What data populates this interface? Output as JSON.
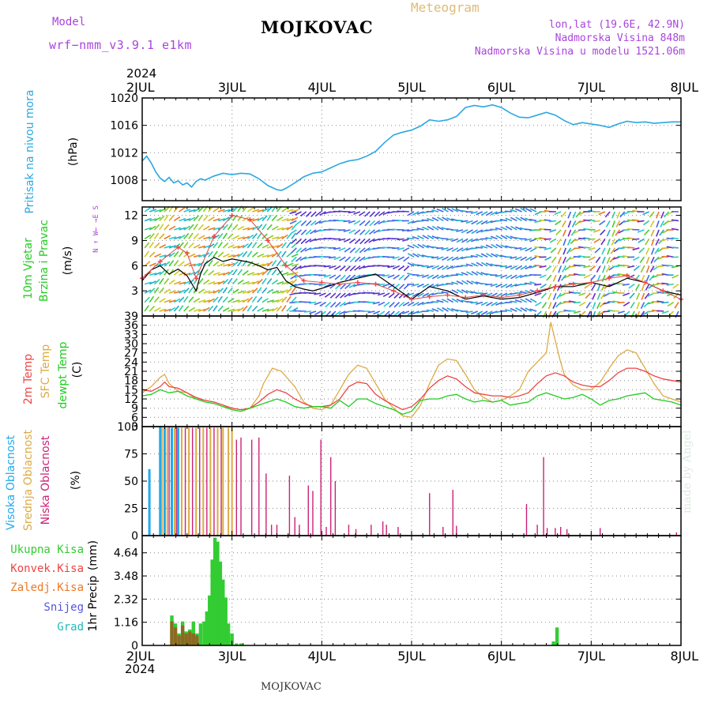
{
  "header": {
    "model_label": "Model",
    "model_value": "wrf−nmm_v3.9.1  e1km",
    "title": "MOJKOVAC",
    "subtitle": "Meteogram",
    "lonlat": "lon,lat (19.6E, 42.9N)",
    "altitude": "Nadmorska Visina 848m",
    "model_altitude": "Nadmorska Visina u modelu 1521.06m",
    "year_top": "2024",
    "year_bottom": "2024",
    "footer": "MOJKOVAC",
    "credit": "made by Angel"
  },
  "colors": {
    "pressure": "#2aa8e0",
    "wind_label": "#22cc22",
    "temp2m": "#ee4444",
    "sfc_temp": "#ddaa44",
    "dewpt": "#22cc22",
    "cloud_high": "#22aaee",
    "cloud_mid": "#ddaa44",
    "cloud_low": "#cc2277",
    "precip_total": "#33cc33",
    "precip_conv": "#ee4444",
    "precip_frozen": "#ee7722",
    "snow": "#5555dd",
    "graupel": "#22bbbb",
    "purple": "#aa44dd",
    "grid": "#999999"
  },
  "chart_data": [
    {
      "type": "line",
      "panel": "pressure",
      "ylabel_main": "Pritisak na nivou mora",
      "ylabel_unit": "(hPa)",
      "ylim": [
        1005,
        1020
      ],
      "yticks": [
        "1008",
        "1012",
        "1016",
        "1020"
      ],
      "x_day_labels": [
        "2JUL",
        "3JUL",
        "4JUL",
        "5JUL",
        "6JUL",
        "7JUL",
        "8JUL"
      ],
      "x_unit": "days since 2 JUL 2024 00UTC",
      "series": [
        {
          "x": [
            0,
            0.05,
            0.1,
            0.15,
            0.2,
            0.25,
            0.3,
            0.35,
            0.4,
            0.45,
            0.5,
            0.55,
            0.6,
            0.65,
            0.7,
            0.8,
            0.9,
            1.0,
            1.1,
            1.2,
            1.3,
            1.4,
            1.5,
            1.55,
            1.6,
            1.7,
            1.8,
            1.9,
            2.0,
            2.1,
            2.2,
            2.3,
            2.4,
            2.5,
            2.6,
            2.7,
            2.8,
            2.9,
            3.0,
            3.1,
            3.2,
            3.3,
            3.4,
            3.5,
            3.6,
            3.7,
            3.8,
            3.9,
            4.0,
            4.1,
            4.2,
            4.3,
            4.4,
            4.5,
            4.6,
            4.7,
            4.8,
            4.9,
            5.0,
            5.1,
            5.2,
            5.3,
            5.4,
            5.5,
            5.6,
            5.7,
            5.8,
            5.9,
            6.0
          ],
          "y": [
            1010.8,
            1011.5,
            1010.5,
            1009.2,
            1008.3,
            1007.8,
            1008.4,
            1007.6,
            1007.9,
            1007.3,
            1007.6,
            1007.0,
            1007.8,
            1008.2,
            1008.0,
            1008.6,
            1009.0,
            1008.8,
            1009.0,
            1008.9,
            1008.2,
            1007.2,
            1006.6,
            1006.5,
            1006.8,
            1007.6,
            1008.5,
            1009.0,
            1009.2,
            1009.8,
            1010.4,
            1010.8,
            1011.0,
            1011.5,
            1012.2,
            1013.5,
            1014.6,
            1015.0,
            1015.3,
            1015.9,
            1016.8,
            1016.6,
            1016.8,
            1017.3,
            1018.6,
            1018.9,
            1018.7,
            1019.0,
            1018.6,
            1017.8,
            1017.2,
            1017.1,
            1017.5,
            1017.9,
            1017.5,
            1016.7,
            1016.1,
            1016.4,
            1016.2,
            1016.0,
            1015.7,
            1016.2,
            1016.6,
            1016.4,
            1016.5,
            1016.3,
            1016.4,
            1016.5,
            1016.5
          ]
        }
      ]
    },
    {
      "type": "line",
      "panel": "wind",
      "ylabel_main": "10m Vjetar",
      "ylabel_main2": "Brzina i Pravac",
      "ylabel_unit": "(m/s)",
      "compass": "N ↑ W← →E S",
      "ylim": [
        0,
        13
      ],
      "yticks": [
        "3",
        "6",
        "9",
        "12"
      ],
      "series": [
        {
          "name": "speed",
          "x": [
            0,
            0.1,
            0.2,
            0.3,
            0.4,
            0.5,
            0.6,
            0.65,
            0.7,
            0.8,
            0.9,
            1.0,
            1.1,
            1.2,
            1.3,
            1.4,
            1.5,
            1.6,
            1.7,
            1.8,
            1.9,
            2.0,
            2.2,
            2.4,
            2.6,
            2.8,
            3.0,
            3.2,
            3.4,
            3.6,
            3.8,
            4.0,
            4.2,
            4.4,
            4.6,
            4.8,
            5.0,
            5.2,
            5.4,
            5.6,
            5.8,
            6.0
          ],
          "y": [
            4.2,
            5.5,
            6.0,
            5.0,
            5.6,
            4.8,
            3.0,
            5.0,
            6.2,
            7.0,
            6.5,
            6.8,
            6.6,
            6.4,
            6.0,
            5.5,
            5.8,
            4.2,
            3.5,
            3.2,
            3.0,
            3.3,
            4.0,
            4.5,
            5.0,
            3.5,
            2.0,
            3.5,
            3.0,
            2.0,
            2.4,
            2.0,
            2.2,
            2.8,
            3.5,
            3.5,
            4.0,
            3.5,
            4.5,
            4.0,
            3.0,
            2.5
          ]
        },
        {
          "name": "gust",
          "x": [
            0,
            0.2,
            0.4,
            0.5,
            0.6,
            0.8,
            1.0,
            1.2,
            1.4,
            1.6,
            1.8,
            2.0,
            2.2,
            2.4,
            2.6,
            2.8,
            3.0,
            3.2,
            3.4,
            3.6,
            3.8,
            4.0,
            4.2,
            4.4,
            4.6,
            4.8,
            5.0,
            5.2,
            5.4,
            5.6,
            5.8,
            6.0
          ],
          "y": [
            4.5,
            6.5,
            8.2,
            7.5,
            4.5,
            9.5,
            12.0,
            11.5,
            9.0,
            6.0,
            4.2,
            4.0,
            3.8,
            4.0,
            3.8,
            3.0,
            2.0,
            2.3,
            2.5,
            2.2,
            2.5,
            2.2,
            2.5,
            3.0,
            3.5,
            3.8,
            4.0,
            4.5,
            4.8,
            4.0,
            3.0,
            2.0
          ]
        }
      ]
    },
    {
      "type": "line",
      "panel": "temperature",
      "ylabel_main": "2m Temp",
      "ylabel_main2": "SFC Temp",
      "ylabel_main3": "dewpt Temp",
      "ylabel_unit": "(C)",
      "ylim": [
        3,
        39
      ],
      "yticks": [
        "3",
        "6",
        "9",
        "12",
        "15",
        "18",
        "21",
        "24",
        "27",
        "30",
        "33",
        "36",
        "39"
      ],
      "series": [
        {
          "name": "2m Temp",
          "x": [
            0,
            0.1,
            0.2,
            0.25,
            0.3,
            0.4,
            0.5,
            0.6,
            0.7,
            0.8,
            0.9,
            1.0,
            1.1,
            1.2,
            1.3,
            1.4,
            1.5,
            1.6,
            1.7,
            1.8,
            1.9,
            2.0,
            2.1,
            2.2,
            2.3,
            2.4,
            2.5,
            2.6,
            2.7,
            2.8,
            2.9,
            3.0,
            3.1,
            3.2,
            3.3,
            3.4,
            3.5,
            3.6,
            3.7,
            3.8,
            3.9,
            4.0,
            4.1,
            4.2,
            4.3,
            4.4,
            4.5,
            4.6,
            4.7,
            4.8,
            4.9,
            5.0,
            5.1,
            5.2,
            5.3,
            5.4,
            5.5,
            5.6,
            5.7,
            5.8,
            5.9,
            6.0
          ],
          "y": [
            15,
            14.5,
            16,
            17.5,
            16,
            15.5,
            14,
            12.5,
            11.5,
            11,
            10,
            9,
            8.5,
            9,
            11,
            13.5,
            15,
            14,
            12,
            10.5,
            9.5,
            9.5,
            10,
            12,
            16,
            17.5,
            17,
            13.5,
            11.5,
            10,
            8.5,
            9.5,
            12,
            15.5,
            18,
            19.5,
            18.5,
            16,
            14,
            13.5,
            13,
            13,
            12.5,
            13,
            14,
            17,
            19.5,
            20.5,
            19.5,
            17.5,
            16.5,
            16,
            16,
            18,
            20.5,
            22,
            22,
            21,
            19.5,
            18.5,
            18,
            17.5
          ]
        },
        {
          "name": "SFC Temp",
          "x": [
            0,
            0.1,
            0.2,
            0.25,
            0.3,
            0.4,
            0.5,
            0.6,
            0.7,
            0.8,
            0.9,
            1.0,
            1.1,
            1.2,
            1.3,
            1.35,
            1.45,
            1.55,
            1.7,
            1.8,
            1.9,
            2.0,
            2.1,
            2.2,
            2.3,
            2.4,
            2.5,
            2.6,
            2.7,
            2.8,
            2.9,
            3.0,
            3.1,
            3.2,
            3.3,
            3.4,
            3.5,
            3.6,
            3.7,
            3.8,
            3.9,
            4.0,
            4.1,
            4.2,
            4.3,
            4.4,
            4.5,
            4.55,
            4.6,
            4.65,
            4.7,
            4.8,
            4.9,
            5.0,
            5.1,
            5.2,
            5.3,
            5.4,
            5.5,
            5.6,
            5.7,
            5.8,
            5.9,
            6.0
          ],
          "y": [
            14,
            16,
            19,
            20,
            17,
            14.5,
            14,
            12,
            11.5,
            11,
            10,
            8.5,
            8,
            9,
            13,
            17,
            22,
            21,
            16,
            11,
            9,
            8.5,
            10,
            15,
            20,
            23,
            22,
            17,
            12,
            9,
            6.5,
            6,
            10,
            17,
            23,
            25,
            24.5,
            20,
            15,
            12.5,
            11,
            11.5,
            13,
            15,
            21,
            24,
            27,
            37,
            31,
            25,
            20,
            16.5,
            15,
            15,
            17.5,
            22,
            26,
            28,
            27,
            22,
            17,
            13,
            12,
            11
          ]
        },
        {
          "name": "dewpt Temp",
          "x": [
            0,
            0.1,
            0.2,
            0.3,
            0.4,
            0.5,
            0.6,
            0.7,
            0.8,
            0.9,
            1.0,
            1.1,
            1.2,
            1.3,
            1.4,
            1.5,
            1.6,
            1.7,
            1.8,
            1.9,
            2.0,
            2.1,
            2.2,
            2.3,
            2.4,
            2.5,
            2.6,
            2.7,
            2.8,
            2.9,
            3.0,
            3.1,
            3.2,
            3.3,
            3.4,
            3.5,
            3.6,
            3.7,
            3.8,
            3.9,
            4.0,
            4.1,
            4.2,
            4.3,
            4.4,
            4.5,
            4.6,
            4.7,
            4.8,
            4.9,
            5.0,
            5.1,
            5.2,
            5.3,
            5.4,
            5.5,
            5.6,
            5.7,
            5.8,
            5.9,
            6.0
          ],
          "y": [
            13,
            13.5,
            15,
            14,
            14.5,
            13,
            12,
            11,
            10.5,
            9.5,
            8.5,
            8,
            9,
            10,
            11,
            12,
            11,
            9.5,
            9,
            9.5,
            9.5,
            9,
            11.5,
            9.5,
            12,
            12,
            10.5,
            9.5,
            8.5,
            7,
            8,
            11.5,
            12,
            12,
            13,
            13.5,
            12,
            11,
            11.5,
            11,
            11.5,
            10,
            10.5,
            11,
            13,
            14,
            13,
            12,
            12.5,
            13.5,
            12,
            10,
            11.5,
            12,
            13,
            13.5,
            14,
            12,
            11.5,
            11,
            10
          ]
        }
      ]
    },
    {
      "type": "bar",
      "panel": "cloud",
      "ylabel_main": "Visoka Oblacnost",
      "ylabel_main2": "Srednja Oblacnost",
      "ylabel_main3": "Niska Oblacnost",
      "ylabel_unit": "(%)",
      "ylim": [
        0,
        100
      ],
      "yticks": [
        "0",
        "25",
        "50",
        "75",
        "100"
      ],
      "series": [
        {
          "name": "Visoka Oblacnost",
          "x": [
            0.08,
            0.2,
            0.25,
            0.33,
            0.4
          ],
          "y": [
            61,
            100,
            99,
            99,
            99
          ]
        },
        {
          "name": "Srednja Oblacnost",
          "x": [
            0.22,
            0.28,
            0.36,
            0.44,
            0.52,
            0.6,
            0.68,
            0.76,
            0.84,
            0.9,
            0.96,
            1.0
          ],
          "y": [
            99,
            99,
            99,
            99,
            99,
            99,
            99,
            99,
            99,
            99,
            99,
            99
          ]
        },
        {
          "name": "Niska Oblacnost",
          "x": [
            0.3,
            0.38,
            0.48,
            0.56,
            0.64,
            0.72,
            0.8,
            0.88,
            1.05,
            1.1,
            1.22,
            1.3,
            1.38,
            1.44,
            1.5,
            1.64,
            1.7,
            1.75,
            1.85,
            1.9,
            1.99,
            2.05,
            2.1,
            2.15,
            2.3,
            2.38,
            2.55,
            2.68,
            2.72,
            2.85,
            3.2,
            3.35,
            3.46,
            3.5,
            4.28,
            4.4,
            4.47,
            4.51,
            4.6,
            4.66,
            4.73,
            5.1,
            5.95
          ],
          "y": [
            100,
            100,
            99,
            99,
            99,
            99,
            99,
            99,
            88,
            90,
            88,
            90,
            57,
            10,
            10,
            55,
            17,
            10,
            46,
            41,
            88,
            8,
            72,
            50,
            10,
            6,
            10,
            13,
            10,
            8,
            39,
            8,
            42,
            9,
            29,
            10,
            72,
            7,
            7,
            8,
            6,
            7,
            3
          ]
        }
      ]
    },
    {
      "type": "bar",
      "panel": "precip",
      "ylabel_main": "1hr Precip",
      "ylabel_unit": "(mm)",
      "legend": [
        "Ukupna Kisa",
        "Konvek.Kisa",
        "Zaledj.Kisa",
        "Snijeg",
        "Grad"
      ],
      "ylim": [
        0,
        5.5
      ],
      "yticks": [
        "0",
        "1.16",
        "2.32",
        "3.48",
        "4.64"
      ],
      "series": [
        {
          "name": "Ukupna Kisa",
          "x": [
            0.33,
            0.37,
            0.41,
            0.45,
            0.49,
            0.53,
            0.57,
            0.61,
            0.65,
            0.69,
            0.72,
            0.75,
            0.78,
            0.81,
            0.84,
            0.87,
            0.9,
            0.93,
            0.96,
            1.0,
            1.05,
            1.1,
            4.58,
            4.62
          ],
          "y": [
            1.5,
            1.1,
            0.6,
            1.2,
            0.7,
            0.8,
            1.2,
            0.6,
            1.1,
            1.2,
            1.7,
            2.5,
            4.3,
            5.4,
            5.2,
            4.2,
            3.3,
            2.4,
            1.1,
            0.6,
            0.1,
            0.1,
            0.2,
            0.9
          ]
        },
        {
          "name": "Konvek.Kisa",
          "x": [
            0.33,
            0.37,
            0.41,
            0.45,
            0.49,
            0.53,
            0.57,
            0.61
          ],
          "y": [
            1.2,
            0.9,
            0.5,
            1.0,
            0.6,
            0.7,
            0.6,
            0.5
          ]
        }
      ]
    }
  ]
}
